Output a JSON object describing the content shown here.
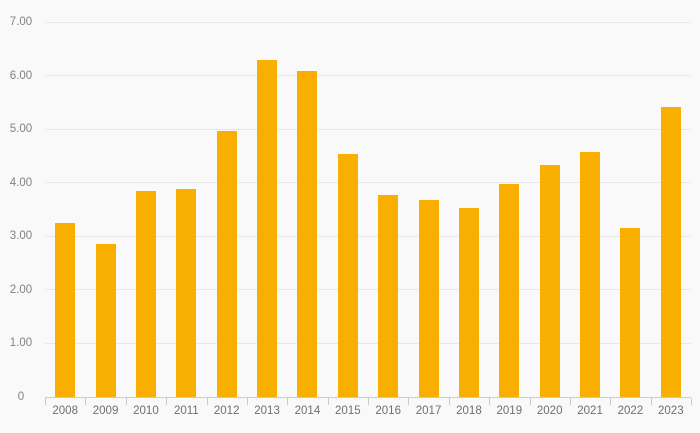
{
  "chart": {
    "title": "",
    "background_color": "#f9f9f9",
    "bar_color": "#F9AE02",
    "grid_color": "#e7e7e7",
    "axis_color": "#c2cbdf",
    "y_label_color": "#828282",
    "x_label_color": "#6f6f6f"
  },
  "chart_data": {
    "type": "bar",
    "categories": [
      "2008",
      "2009",
      "2010",
      "2011",
      "2012",
      "2013",
      "2014",
      "2015",
      "2016",
      "2017",
      "2018",
      "2019",
      "2020",
      "2021",
      "2022",
      "2023"
    ],
    "values": [
      3.25,
      2.85,
      3.84,
      3.88,
      4.97,
      6.3,
      6.08,
      4.53,
      3.77,
      3.67,
      3.53,
      3.98,
      4.34,
      4.57,
      3.15,
      5.42
    ],
    "title": "",
    "xlabel": "",
    "ylabel": "",
    "ylim": [
      0,
      7
    ],
    "ytick_values": [
      0,
      1,
      2,
      3,
      4,
      5,
      6,
      7
    ],
    "ytick_labels": [
      "0",
      "1.00",
      "2.00",
      "3.00",
      "4.00",
      "5.00",
      "6.00",
      "7.00"
    ],
    "grid": true,
    "legend": false
  }
}
